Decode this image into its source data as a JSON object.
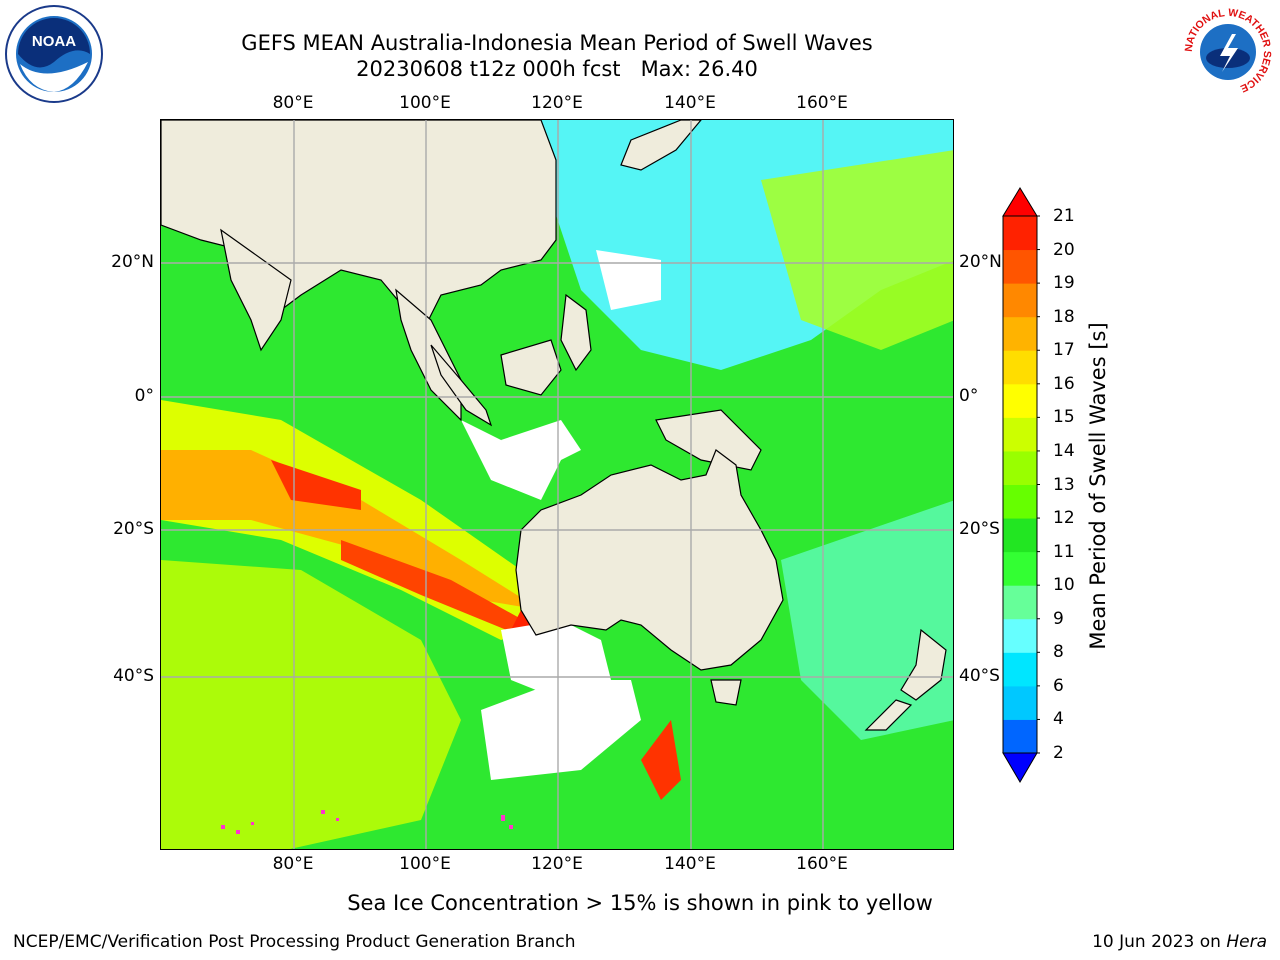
{
  "title": {
    "line1": "GEFS MEAN Australia-Indonesia Mean Period of Swell Waves",
    "line2": "20230608 t12z 000h fcst   Max: 26.40"
  },
  "map": {
    "lon_labels": [
      "80°E",
      "100°E",
      "120°E",
      "140°E",
      "160°E"
    ],
    "lat_labels": [
      "20°N",
      "0°",
      "20°S",
      "40°S"
    ],
    "lon_values": [
      80,
      100,
      120,
      140,
      160
    ],
    "lat_values": [
      20,
      0,
      -20,
      -40
    ],
    "extent": {
      "lon": [
        60,
        180
      ],
      "lat": [
        -68,
        40
      ]
    },
    "land_color": "#efecdc",
    "no_data_color": "#ffffff"
  },
  "colorbar": {
    "label": "Mean Period of Swell Waves [s]",
    "ticks": [
      "2",
      "4",
      "6",
      "8",
      "9",
      "10",
      "11",
      "12",
      "13",
      "14",
      "15",
      "16",
      "17",
      "18",
      "19",
      "20",
      "21"
    ],
    "colors": [
      "#0000ff",
      "#0066ff",
      "#00c8ff",
      "#00e6ff",
      "#66ffff",
      "#66ff99",
      "#33ff33",
      "#22e622",
      "#66ff00",
      "#99ff00",
      "#ccff00",
      "#ffff00",
      "#ffdd00",
      "#ffb300",
      "#ff8800",
      "#ff5500",
      "#ff2200"
    ],
    "extend_low_color": "#0000ff",
    "extend_high_color": "#ff0000"
  },
  "footer": {
    "center": "Sea Ice Concentration > 15% is shown in pink to yellow",
    "left": "NCEP/EMC/Verification Post Processing Product Generation Branch",
    "right_prefix": "10 Jun 2023 on ",
    "right_host": "Hera"
  },
  "logos": {
    "left": "noaa-logo",
    "right_text": "NATIONAL WEATHER SERVICE"
  }
}
